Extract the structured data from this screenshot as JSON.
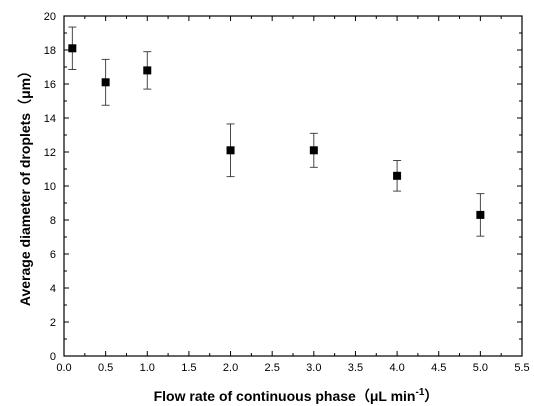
{
  "chart_data": {
    "type": "scatter",
    "xlabel": "Flow rate of continuous phase（",
    "xlabel_unit": "μL min",
    "xlabel_exp": "-1",
    "xlabel_close": "）",
    "ylabel": "Average diameter of droplets（μm）",
    "xlim": [
      0,
      5.5
    ],
    "ylim": [
      0,
      20
    ],
    "xticks": [
      "0.0",
      "0.5",
      "1.0",
      "1.5",
      "2.0",
      "2.5",
      "3.0",
      "3.5",
      "4.0",
      "4.5",
      "5.0",
      "5.5"
    ],
    "yticks": [
      "0",
      "2",
      "4",
      "6",
      "8",
      "10",
      "12",
      "14",
      "16",
      "18",
      "20"
    ],
    "grid": false,
    "legend": "none",
    "marker": "filled-square",
    "color": "#000000",
    "points": [
      {
        "x": 0.1,
        "y": 18.1,
        "err_low": 16.85,
        "err_high": 19.35
      },
      {
        "x": 0.5,
        "y": 16.1,
        "err_low": 14.75,
        "err_high": 17.45
      },
      {
        "x": 1.0,
        "y": 16.8,
        "err_low": 15.7,
        "err_high": 17.9
      },
      {
        "x": 2.0,
        "y": 12.1,
        "err_low": 10.55,
        "err_high": 13.65
      },
      {
        "x": 3.0,
        "y": 12.1,
        "err_low": 11.1,
        "err_high": 13.1
      },
      {
        "x": 4.0,
        "y": 10.6,
        "err_low": 9.7,
        "err_high": 11.5
      },
      {
        "x": 5.0,
        "y": 8.3,
        "err_low": 7.05,
        "err_high": 9.55
      }
    ]
  }
}
